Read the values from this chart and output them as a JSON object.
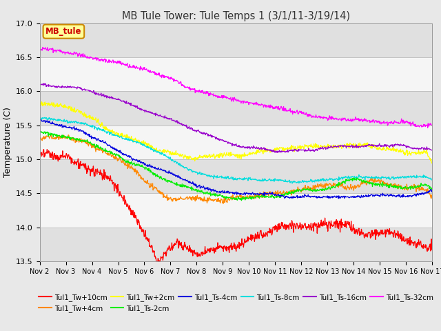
{
  "title": "MB Tule Tower: Tule Temps 1 (3/1/11-3/19/14)",
  "ylabel": "Temperature (C)",
  "ylim": [
    13.5,
    17.0
  ],
  "yticks": [
    13.5,
    14.0,
    14.5,
    15.0,
    15.5,
    16.0,
    16.5,
    17.0
  ],
  "xtick_labels": [
    "Nov 2",
    "Nov 3",
    "Nov 4",
    "Nov 5",
    "Nov 6",
    "Nov 7",
    "Nov 8",
    "Nov 9",
    "Nov 10",
    "Nov 11",
    "Nov 12",
    "Nov 13",
    "Nov 14",
    "Nov 15",
    "Nov 16",
    "Nov 17"
  ],
  "series_colors": [
    "#ff0000",
    "#ff8800",
    "#ffff00",
    "#00ee00",
    "#0000dd",
    "#00dddd",
    "#9900cc",
    "#ff00ff"
  ],
  "series_names": [
    "Tul1_Tw+10cm",
    "Tul1_Tw+4cm",
    "Tul1_Tw+2cm",
    "Tul1_Ts-2cm",
    "Tul1_Ts-4cm",
    "Tul1_Ts-8cm",
    "Tul1_Ts-16cm",
    "Tul1_Ts-32cm"
  ],
  "bg_color": "#e8e8e8",
  "plot_bg_color": "#f0f0f0",
  "stripe_color": "#e0e0e0"
}
